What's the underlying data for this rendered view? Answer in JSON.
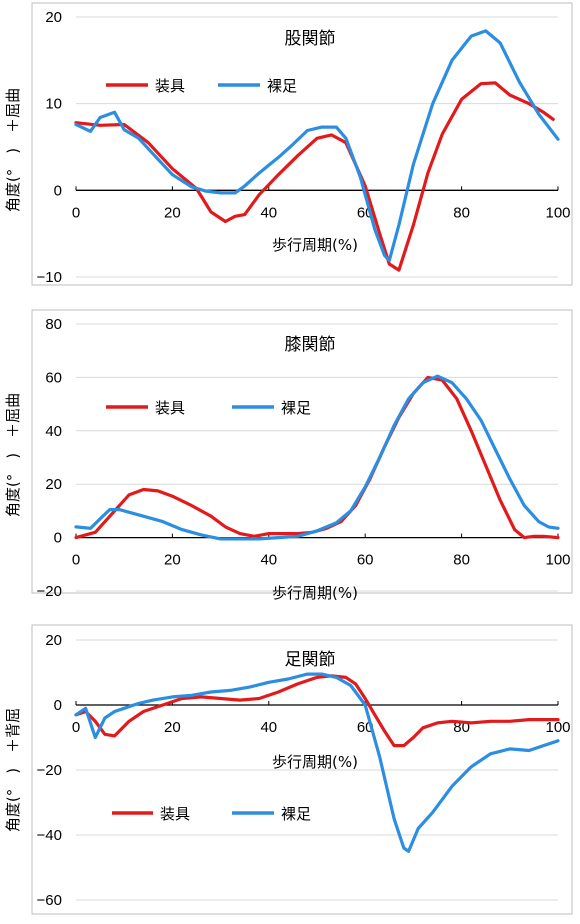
{
  "chart_data": [
    {
      "type": "line",
      "title": "股関節",
      "xlabel": "歩行周期(%)",
      "ylabel": "角度(°　)　＋屈曲",
      "xlim": [
        0,
        100
      ],
      "ylim": [
        -10,
        20
      ],
      "x_ticks": [
        0,
        20,
        40,
        60,
        80,
        100
      ],
      "y_ticks": [
        -10,
        0,
        10,
        20
      ],
      "grid": true,
      "legend": "top-left",
      "series": [
        {
          "name": "装具",
          "color": "#e31a1c",
          "x": [
            0,
            5,
            10,
            15,
            20,
            25,
            28,
            31,
            33,
            35,
            38,
            42,
            46,
            50,
            53,
            56,
            60,
            63,
            65,
            67,
            70,
            73,
            76,
            80,
            84,
            87,
            90,
            94,
            97,
            99
          ],
          "y": [
            7.8,
            7.5,
            7.6,
            5.5,
            2.5,
            0.2,
            -2.5,
            -3.6,
            -3.0,
            -2.8,
            -0.5,
            1.8,
            4.0,
            6.0,
            6.4,
            5.5,
            0.5,
            -5.0,
            -8.5,
            -9.2,
            -4.0,
            2.0,
            6.5,
            10.5,
            12.3,
            12.4,
            11.0,
            10.0,
            9.0,
            8.2
          ]
        },
        {
          "name": "裸足",
          "color": "#2b8ee0",
          "x": [
            0,
            3,
            5,
            8,
            10,
            13,
            16,
            20,
            24,
            27,
            30,
            33,
            35,
            38,
            42,
            45,
            48,
            51,
            54,
            56,
            59,
            62,
            64,
            65,
            67,
            70,
            74,
            78,
            82,
            85,
            88,
            92,
            96,
            100
          ],
          "y": [
            7.6,
            6.8,
            8.4,
            9.0,
            7.0,
            6.0,
            4.2,
            1.8,
            0.4,
            -0.1,
            -0.3,
            -0.3,
            0.5,
            2.0,
            3.8,
            5.3,
            6.9,
            7.3,
            7.3,
            6.0,
            1.5,
            -4.5,
            -7.5,
            -8.1,
            -4.0,
            3.0,
            10.0,
            15.0,
            17.8,
            18.4,
            17.0,
            12.5,
            8.8,
            5.9
          ]
        }
      ]
    },
    {
      "type": "line",
      "title": "膝関節",
      "xlabel": "歩行周期(%)",
      "ylabel": "角度(°　)　＋屈曲",
      "xlim": [
        0,
        100
      ],
      "ylim": [
        -20,
        80
      ],
      "x_ticks": [
        0,
        20,
        40,
        60,
        80,
        100
      ],
      "y_ticks": [
        -20,
        0,
        20,
        40,
        60,
        80
      ],
      "grid": true,
      "legend": "top-left",
      "series": [
        {
          "name": "装具",
          "color": "#e31a1c",
          "x": [
            0,
            4,
            8,
            11,
            14,
            17,
            20,
            24,
            28,
            31,
            34,
            37,
            40,
            43,
            46,
            49,
            52,
            55,
            58,
            61,
            64,
            67,
            70,
            73,
            76,
            79,
            82,
            85,
            88,
            91,
            93,
            95,
            97,
            100
          ],
          "y": [
            0,
            2,
            10,
            16,
            18,
            17.5,
            15.5,
            12,
            8,
            4,
            1.5,
            0.5,
            1.5,
            1.5,
            1.5,
            2,
            3.5,
            6,
            12,
            22,
            34,
            45,
            54,
            60,
            59,
            52,
            40,
            27,
            14,
            3,
            0,
            0.5,
            0.5,
            0
          ]
        },
        {
          "name": "裸足",
          "color": "#2b8ee0",
          "x": [
            0,
            3,
            5,
            7,
            9,
            12,
            15,
            18,
            22,
            26,
            30,
            34,
            38,
            42,
            46,
            50,
            54,
            57,
            60,
            63,
            66,
            69,
            72,
            75,
            78,
            81,
            84,
            87,
            90,
            93,
            96,
            98,
            100
          ],
          "y": [
            4,
            3.5,
            7,
            10.5,
            10.5,
            9,
            7.5,
            6,
            3,
            1,
            -0.5,
            -0.5,
            -0.5,
            0,
            0.5,
            2.5,
            5.5,
            10,
            19,
            30,
            42,
            52,
            58,
            60.5,
            58,
            52,
            44,
            33,
            22,
            12,
            6,
            4,
            3.5
          ]
        }
      ]
    },
    {
      "type": "line",
      "title": "足関節",
      "xlabel": "歩行周期(%)",
      "ylabel": "角度(°　)　＋背屈",
      "xlim": [
        0,
        100
      ],
      "ylim": [
        -60,
        20
      ],
      "x_ticks": [
        0,
        20,
        40,
        60,
        80,
        100
      ],
      "y_ticks": [
        -60,
        -40,
        -20,
        0,
        20
      ],
      "grid": true,
      "legend": "lower-left",
      "series": [
        {
          "name": "装具",
          "color": "#e31a1c",
          "x": [
            0,
            2,
            4,
            6,
            8,
            11,
            14,
            18,
            22,
            26,
            30,
            34,
            38,
            42,
            46,
            50,
            53,
            56,
            58,
            60,
            62,
            64,
            66,
            68,
            70,
            72,
            75,
            78,
            82,
            86,
            90,
            94,
            97,
            100
          ],
          "y": [
            -3,
            -2,
            -5,
            -9,
            -9.5,
            -5,
            -2,
            0,
            2,
            2.5,
            2,
            1.5,
            2,
            4,
            6.5,
            8.5,
            9,
            8.5,
            6.5,
            2,
            -3,
            -8,
            -12.5,
            -12.5,
            -10,
            -7,
            -5.5,
            -5,
            -5.5,
            -5,
            -5,
            -4.5,
            -4.5,
            -4.5
          ]
        },
        {
          "name": "裸足",
          "color": "#2b8ee0",
          "x": [
            0,
            2,
            4,
            6,
            8,
            10,
            13,
            16,
            20,
            24,
            28,
            32,
            36,
            40,
            44,
            48,
            51,
            54,
            57,
            60,
            63,
            66,
            68,
            69,
            71,
            74,
            78,
            82,
            86,
            90,
            94,
            97,
            100
          ],
          "y": [
            -3,
            -1,
            -10,
            -4,
            -2,
            -1,
            0.5,
            1.5,
            2.5,
            3,
            4,
            4.5,
            5.5,
            7,
            8,
            9.5,
            9.5,
            8.5,
            6,
            0,
            -16,
            -35,
            -44,
            -45,
            -38,
            -33,
            -25,
            -19,
            -15,
            -13.5,
            -14,
            -12.5,
            -11
          ]
        }
      ]
    }
  ]
}
